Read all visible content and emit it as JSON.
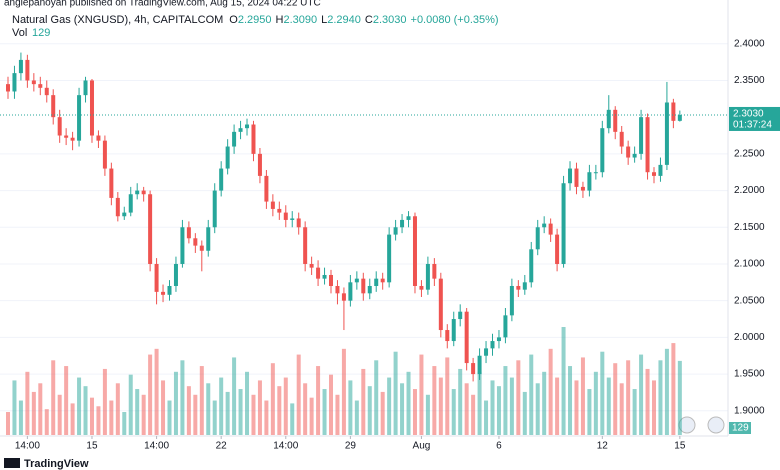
{
  "header": {
    "published": "anglepanoyan published on TradingView.com, Aug 15, 2024 04:22 UTC",
    "brand": "TradingView"
  },
  "chart_data": {
    "type": "candlestick",
    "title": "Natural Gas (XNGUSD), 4h, CAPITALCOM",
    "ohlc_legend": {
      "o_label": "O",
      "o": "2.2950",
      "h_label": "H",
      "h": "2.3090",
      "l_label": "L",
      "l": "2.2940",
      "c_label": "C",
      "c": "2.3030",
      "change": "+0.0080 (+0.35%)"
    },
    "volume_label": "Vol",
    "up_color": "#26a69a",
    "down_color": "#ef5350",
    "categories": [
      null,
      null,
      null,
      "14:00",
      null,
      null,
      null,
      null,
      null,
      null,
      null,
      null,
      null,
      "15",
      null,
      null,
      null,
      null,
      null,
      null,
      null,
      null,
      null,
      "14:00",
      null,
      null,
      null,
      null,
      null,
      null,
      null,
      null,
      null,
      "22",
      null,
      null,
      null,
      null,
      null,
      null,
      null,
      null,
      null,
      "14:00",
      null,
      null,
      null,
      null,
      null,
      null,
      null,
      null,
      null,
      "29",
      null,
      null,
      null,
      null,
      null,
      null,
      null,
      null,
      null,
      null,
      "Aug",
      null,
      null,
      null,
      null,
      null,
      null,
      null,
      null,
      null,
      null,
      null,
      "6",
      null,
      null,
      null,
      null,
      null,
      null,
      null,
      null,
      null,
      null,
      null,
      null,
      null,
      null,
      null,
      "12",
      null,
      null,
      null,
      null,
      null,
      null,
      null,
      null,
      null,
      null,
      null,
      "15"
    ],
    "open": [
      2.345,
      2.335,
      2.36,
      2.378,
      2.35,
      2.345,
      2.34,
      2.33,
      2.3,
      2.275,
      2.272,
      2.268,
      2.33,
      2.35,
      2.275,
      2.268,
      2.23,
      2.19,
      2.165,
      2.17,
      2.195,
      2.2,
      2.195,
      2.1,
      2.062,
      2.058,
      2.07,
      2.1,
      2.15,
      2.135,
      2.125,
      2.118,
      2.15,
      2.2,
      2.23,
      2.26,
      2.28,
      2.285,
      2.29,
      2.25,
      2.22,
      2.185,
      2.175,
      2.17,
      2.16,
      2.162,
      2.15,
      2.1,
      2.095,
      2.08,
      2.085,
      2.07,
      2.06,
      2.05,
      2.075,
      2.08,
      2.06,
      2.07,
      2.08,
      2.075,
      2.14,
      2.15,
      2.16,
      2.165,
      2.07,
      2.065,
      2.1,
      2.08,
      2.01,
      1.995,
      2.025,
      2.035,
      1.965,
      1.95,
      1.975,
      1.985,
      1.995,
      2.0,
      2.03,
      2.07,
      2.065,
      2.075,
      2.12,
      2.15,
      2.155,
      2.14,
      2.1,
      2.21,
      2.23,
      2.205,
      2.2,
      2.225,
      2.225,
      2.285,
      2.31,
      2.28,
      2.26,
      2.245,
      2.25,
      2.3,
      2.225,
      2.22,
      2.235,
      2.32,
      2.295
    ],
    "high": [
      2.355,
      2.37,
      2.388,
      2.385,
      2.36,
      2.355,
      2.35,
      2.338,
      2.31,
      2.285,
      2.28,
      2.34,
      2.355,
      2.352,
      2.282,
      2.275,
      2.238,
      2.198,
      2.178,
      2.205,
      2.21,
      2.205,
      2.2,
      2.108,
      2.072,
      2.078,
      2.11,
      2.16,
      2.158,
      2.142,
      2.132,
      2.16,
      2.21,
      2.24,
      2.27,
      2.29,
      2.295,
      2.298,
      2.295,
      2.258,
      2.228,
      2.195,
      2.185,
      2.18,
      2.172,
      2.17,
      2.158,
      2.11,
      2.105,
      2.095,
      2.092,
      2.078,
      2.068,
      2.085,
      2.09,
      2.088,
      2.08,
      2.09,
      2.088,
      2.15,
      2.16,
      2.168,
      2.172,
      2.17,
      2.078,
      2.11,
      2.108,
      2.088,
      2.018,
      2.035,
      2.045,
      2.04,
      1.972,
      1.985,
      1.995,
      2.005,
      2.01,
      2.04,
      2.08,
      2.078,
      2.085,
      2.13,
      2.16,
      2.165,
      2.162,
      2.148,
      2.22,
      2.24,
      2.238,
      2.212,
      2.235,
      2.235,
      2.295,
      2.33,
      2.315,
      2.288,
      2.268,
      2.26,
      2.31,
      2.305,
      2.232,
      2.245,
      2.348,
      2.325,
      2.309
    ],
    "low": [
      2.325,
      2.325,
      2.35,
      2.34,
      2.335,
      2.33,
      2.32,
      2.29,
      2.265,
      2.262,
      2.255,
      2.26,
      2.32,
      2.265,
      2.258,
      2.22,
      2.18,
      2.158,
      2.16,
      2.165,
      2.188,
      2.185,
      2.09,
      2.045,
      2.048,
      2.05,
      2.062,
      2.095,
      2.128,
      2.115,
      2.09,
      2.11,
      2.142,
      2.192,
      2.222,
      2.25,
      2.27,
      2.275,
      2.24,
      2.21,
      2.175,
      2.165,
      2.16,
      2.15,
      2.15,
      2.14,
      2.09,
      2.085,
      2.07,
      2.072,
      2.06,
      2.045,
      2.01,
      2.042,
      2.065,
      2.05,
      2.052,
      2.062,
      2.065,
      2.068,
      2.132,
      2.142,
      2.15,
      2.06,
      2.055,
      2.058,
      2.07,
      2.0,
      1.985,
      1.988,
      2.015,
      1.955,
      1.94,
      1.942,
      1.965,
      1.975,
      1.985,
      1.992,
      2.022,
      2.055,
      2.058,
      2.068,
      2.112,
      2.142,
      2.13,
      2.09,
      2.095,
      2.2,
      2.195,
      2.19,
      2.192,
      2.215,
      2.218,
      2.278,
      2.27,
      2.25,
      2.235,
      2.238,
      2.242,
      2.215,
      2.21,
      2.212,
      2.228,
      2.285,
      2.294
    ],
    "close": [
      2.335,
      2.36,
      2.378,
      2.35,
      2.345,
      2.34,
      2.33,
      2.3,
      2.275,
      2.272,
      2.268,
      2.33,
      2.35,
      2.275,
      2.268,
      2.23,
      2.19,
      2.165,
      2.17,
      2.195,
      2.2,
      2.195,
      2.1,
      2.062,
      2.058,
      2.07,
      2.1,
      2.15,
      2.135,
      2.125,
      2.118,
      2.15,
      2.2,
      2.23,
      2.26,
      2.28,
      2.285,
      2.29,
      2.25,
      2.22,
      2.185,
      2.175,
      2.17,
      2.16,
      2.162,
      2.15,
      2.1,
      2.095,
      2.08,
      2.085,
      2.07,
      2.06,
      2.05,
      2.075,
      2.08,
      2.06,
      2.07,
      2.08,
      2.075,
      2.14,
      2.15,
      2.16,
      2.165,
      2.07,
      2.065,
      2.1,
      2.08,
      2.01,
      1.995,
      2.025,
      2.035,
      1.965,
      1.95,
      1.975,
      1.985,
      1.995,
      2.0,
      2.03,
      2.07,
      2.065,
      2.075,
      2.12,
      2.15,
      2.155,
      2.14,
      2.1,
      2.21,
      2.23,
      2.205,
      2.2,
      2.225,
      2.225,
      2.285,
      2.31,
      2.28,
      2.26,
      2.245,
      2.25,
      2.3,
      2.225,
      2.22,
      2.235,
      2.32,
      2.295,
      2.303
    ],
    "volume": [
      40,
      95,
      60,
      110,
      75,
      90,
      45,
      130,
      70,
      120,
      55,
      100,
      85,
      65,
      50,
      115,
      60,
      90,
      40,
      105,
      80,
      70,
      140,
      150,
      95,
      60,
      110,
      130,
      85,
      70,
      120,
      90,
      60,
      100,
      75,
      135,
      80,
      110,
      70,
      95,
      60,
      125,
      85,
      100,
      55,
      140,
      90,
      65,
      120,
      80,
      105,
      70,
      150,
      95,
      60,
      115,
      85,
      130,
      75,
      100,
      145,
      90,
      110,
      80,
      140,
      70,
      120,
      100,
      135,
      80,
      115,
      90,
      70,
      110,
      60,
      95,
      85,
      120,
      100,
      130,
      75,
      140,
      90,
      110,
      150,
      100,
      188,
      120,
      95,
      135,
      80,
      110,
      145,
      100,
      125,
      90,
      130,
      80,
      140,
      115,
      95,
      130,
      150,
      160,
      129
    ],
    "ylim": [
      1.867,
      2.446
    ],
    "yticks": [
      {
        "value": 1.9,
        "label": "1.9000"
      },
      {
        "value": 1.95,
        "label": "1.9500"
      },
      {
        "value": 2.0,
        "label": "2.0000"
      },
      {
        "value": 2.05,
        "label": "2.0500"
      },
      {
        "value": 2.1,
        "label": "2.1000"
      },
      {
        "value": 2.15,
        "label": "2.1500"
      },
      {
        "value": 2.2,
        "label": "2.2000"
      },
      {
        "value": 2.25,
        "label": "2.2500"
      },
      {
        "value": 2.35,
        "label": "2.3500"
      },
      {
        "value": 2.4,
        "label": "2.4000"
      }
    ],
    "grid": true,
    "price_line": {
      "value": 2.303,
      "label": "2.3030",
      "countdown": "01:37:24"
    }
  }
}
